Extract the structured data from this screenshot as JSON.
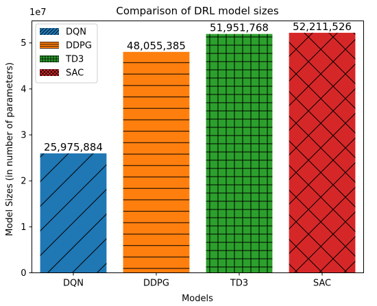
{
  "chart_data": {
    "type": "bar",
    "title": "Comparison of DRL model sizes",
    "xlabel": "Models",
    "ylabel": "Model Sizes (in number of parameters)",
    "y_offset_text": "1e7",
    "categories": [
      "DQN",
      "DDPG",
      "TD3",
      "SAC"
    ],
    "values": [
      25975884,
      48055385,
      51951768,
      52211526
    ],
    "value_labels": [
      "25,975,884",
      "48,055,385",
      "51,951,768",
      "52,211,526"
    ],
    "yticks": [
      0,
      1,
      2,
      3,
      4,
      5
    ],
    "ylim": [
      0,
      54800000
    ],
    "colors": [
      "#1f77b4",
      "#ff7f0e",
      "#2ca02c",
      "#d62728"
    ],
    "hatches": [
      "diagonal",
      "horizontal",
      "grid",
      "crosshatch"
    ],
    "legend": {
      "placement": "top-left",
      "entries": [
        "DQN",
        "DDPG",
        "TD3",
        "SAC"
      ]
    },
    "grid": false
  }
}
